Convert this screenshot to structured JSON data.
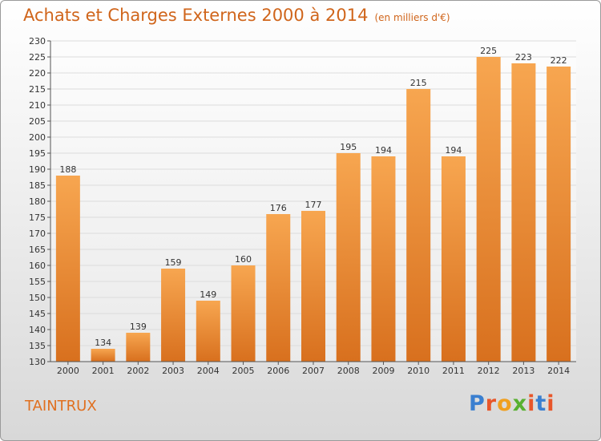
{
  "title": "Achats et Charges Externes 2000 à 2014",
  "unit": "(en milliers d'€)",
  "commune": "TAINTRUX",
  "logo": "Proxiti",
  "colors": {
    "title": "#d0651b",
    "bar_top": "#f7a650",
    "bar_bottom": "#d8701e",
    "logo": [
      "#3a7fd0",
      "#e8562a",
      "#f0a020",
      "#58b030",
      "#e8562a",
      "#3a7fd0",
      "#e8562a"
    ]
  },
  "chart_data": {
    "type": "bar",
    "categories": [
      "2000",
      "2001",
      "2002",
      "2003",
      "2004",
      "2005",
      "2006",
      "2007",
      "2008",
      "2009",
      "2010",
      "2011",
      "2012",
      "2013",
      "2014"
    ],
    "values": [
      188,
      134,
      139,
      159,
      149,
      160,
      176,
      177,
      195,
      194,
      215,
      194,
      225,
      223,
      222
    ],
    "ylim": [
      130,
      230
    ],
    "yticks": [
      130,
      135,
      140,
      145,
      150,
      155,
      160,
      165,
      170,
      175,
      180,
      185,
      190,
      195,
      200,
      205,
      210,
      215,
      220,
      225,
      230
    ],
    "grid": true,
    "data_labels": true
  }
}
